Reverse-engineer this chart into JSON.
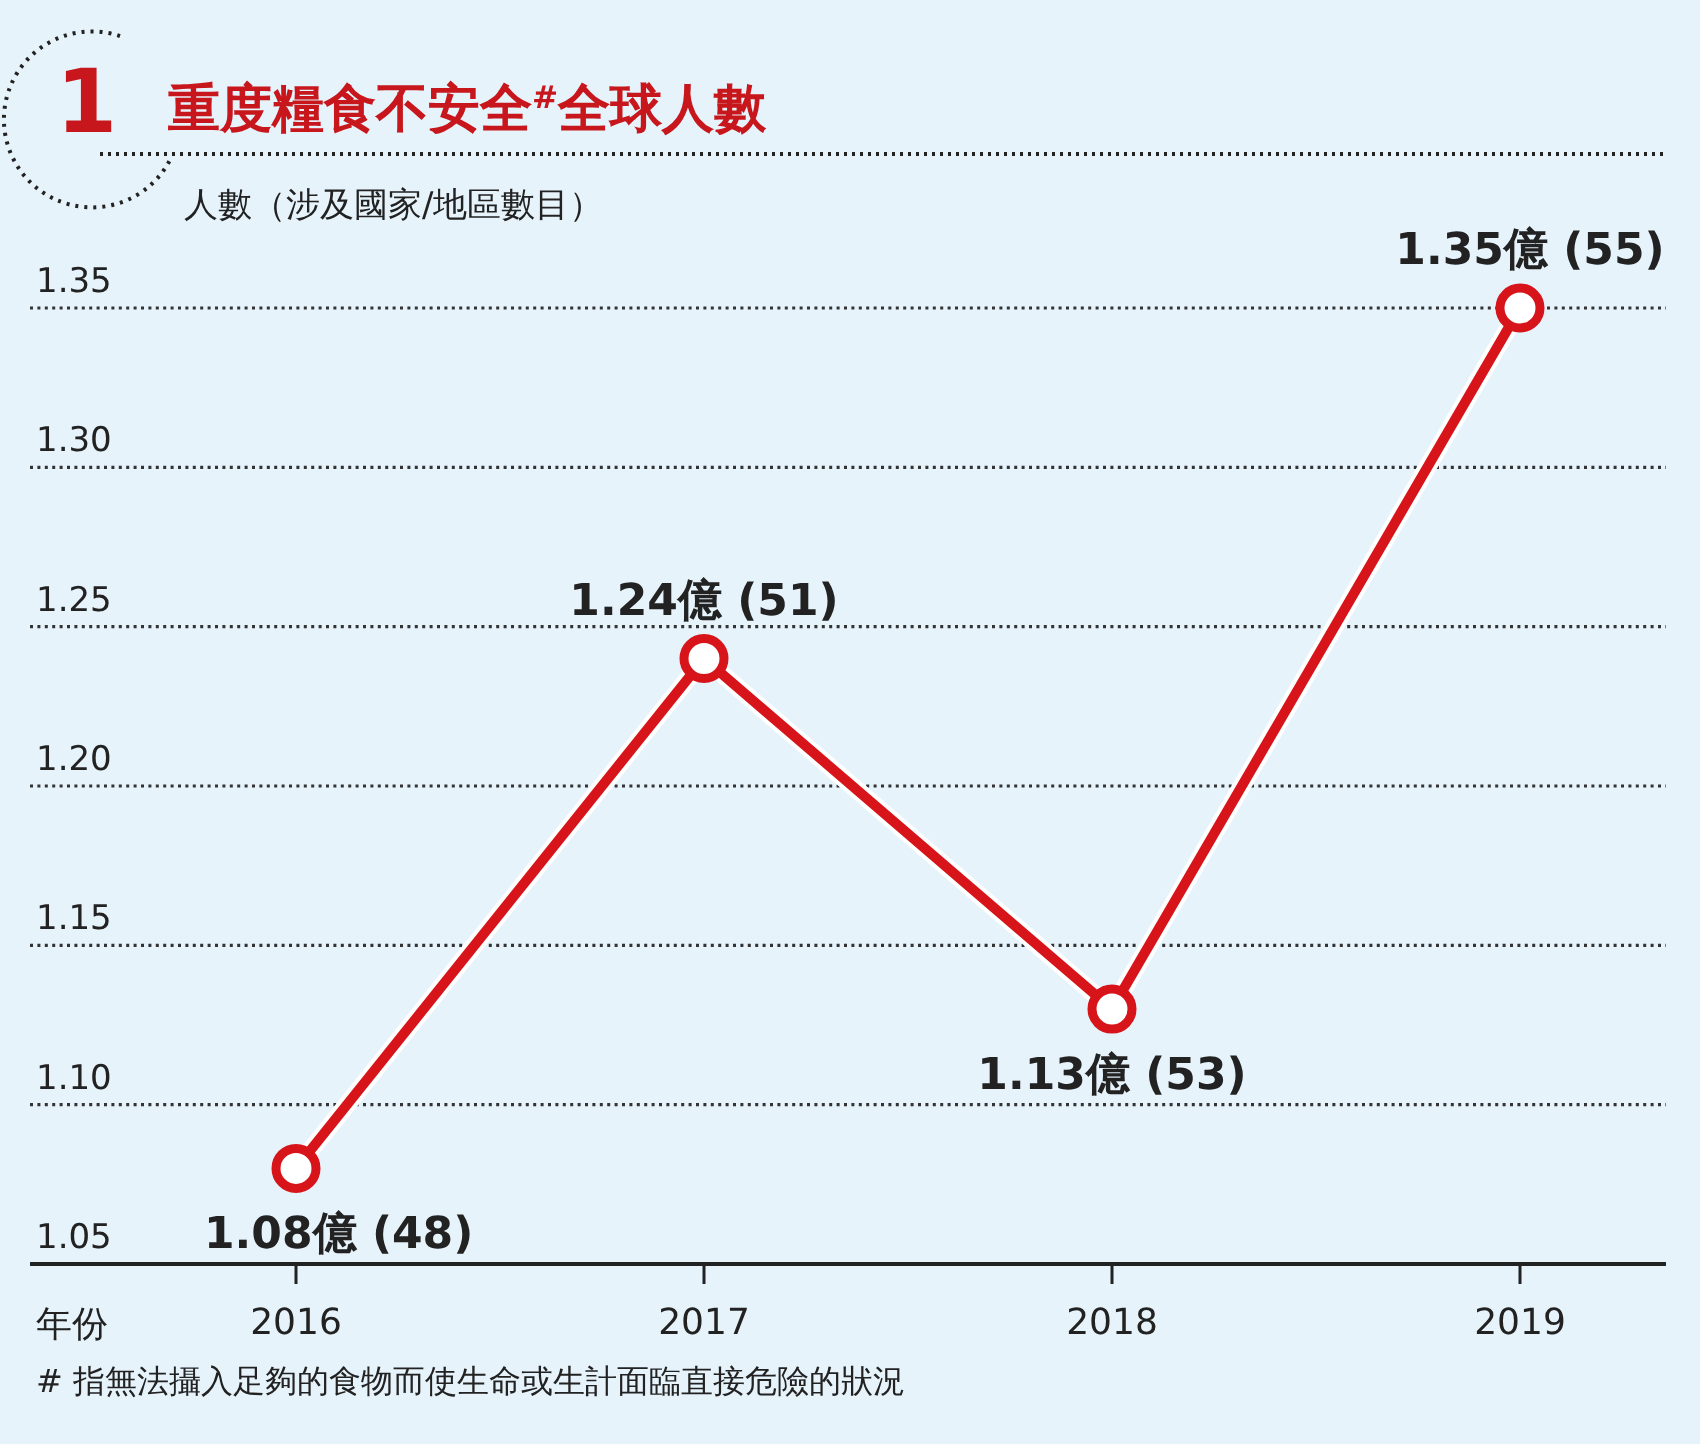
{
  "chart_data": {
    "type": "line",
    "title": "重度糧食不安全$^{#}$全球人數",
    "ylabel": "人數（涉及國家/地區數目）",
    "xlabel": "年份",
    "annotations": [
      "1",
      "# 指無法攝入足夠的食物而使生命或生計面臨直接危險的狀況"
    ],
    "categories": [
      "2016",
      "2017",
      "2018",
      "2019"
    ],
    "values": [
      1.08,
      1.24,
      1.13,
      1.35
    ],
    "value_labels": [
      "1.08億 (48)",
      "1.24億 (51)",
      "1.13億 (53)",
      "1.35億 (55)"
    ],
    "color": "#d7141a",
    "marker": "circle",
    "grid": "y",
    "ylim": [
      1.05,
      1.35
    ],
    "yticks": [
      1.05,
      {
        "value": 1.1,
        "label": "1.10"
      },
      1.15,
      {
        "value": 1.2,
        "label": "1.20"
      },
      1.25,
      {
        "value": 1.3,
        "label": "1.30"
      },
      1.35
    ]
  }
}
